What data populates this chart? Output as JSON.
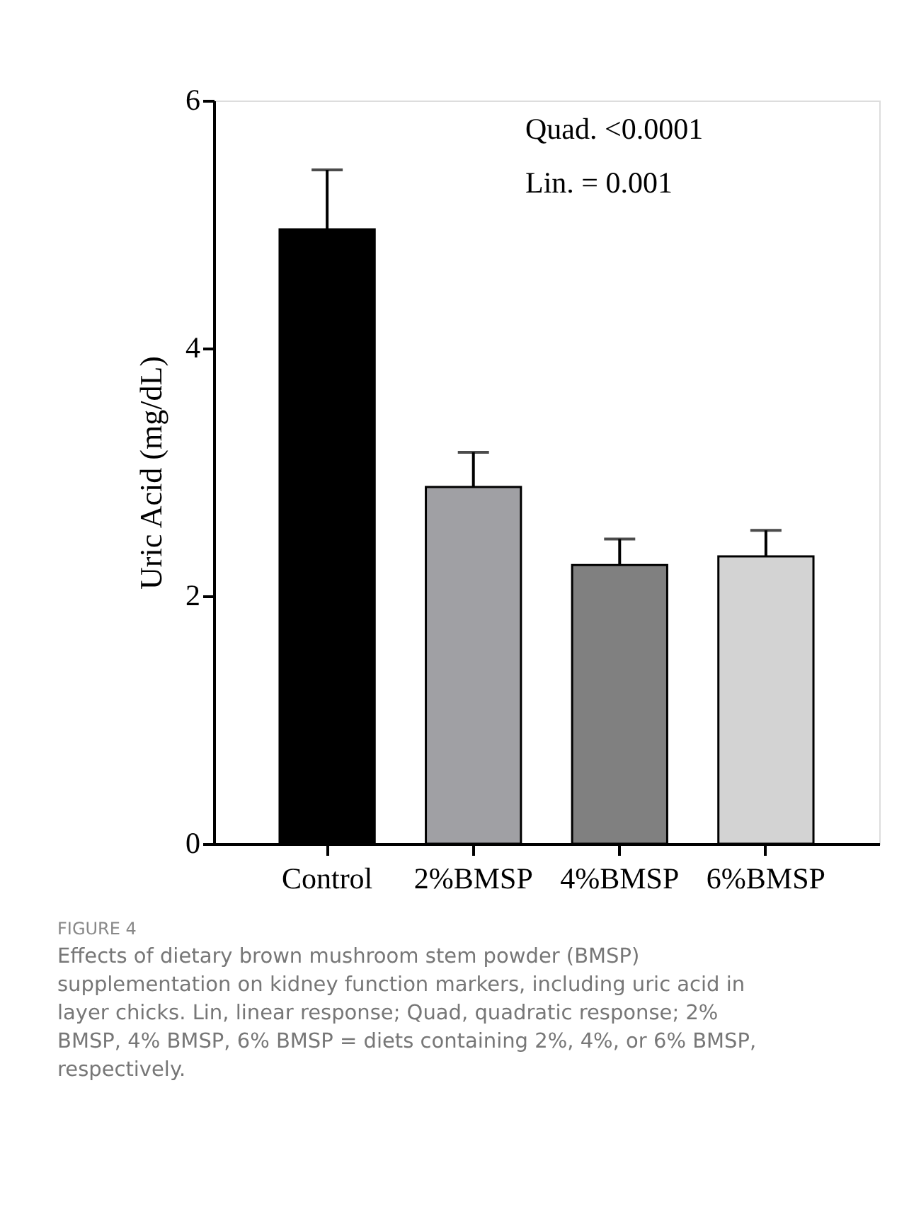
{
  "chart_data": {
    "type": "bar",
    "categories": [
      "Control",
      "2%BMSP",
      "4%BMSP",
      "6%BMSP"
    ],
    "values": [
      4.96,
      2.88,
      2.25,
      2.32
    ],
    "colors": [
      "#000000",
      "#a0a0a4",
      "#808080",
      "#d3d3d3"
    ],
    "errors": [
      [
        4.96,
        5.44
      ],
      [
        2.88,
        3.16
      ],
      [
        2.25,
        2.46
      ],
      [
        2.32,
        2.53
      ]
    ],
    "ylabel": "Uric Acid (mg/dL)",
    "ylim": [
      0,
      6
    ],
    "yticks": [
      0,
      2,
      4,
      6
    ],
    "grid": false,
    "legend": false,
    "annotations": [
      "Quad. <0.0001",
      "Lin. = 0.001",
      "FIGURE 4",
      "Effects of dietary brown mushroom stem powder (BMSP) supplementation on kidney function markers, including uric acid in layer chicks. Lin, linear response; Quad, quadratic response; 2% BMSP, 4% BMSP, 6% BMSP = diets containing 2%, 4%, or 6% BMSP, respectively."
    ]
  }
}
